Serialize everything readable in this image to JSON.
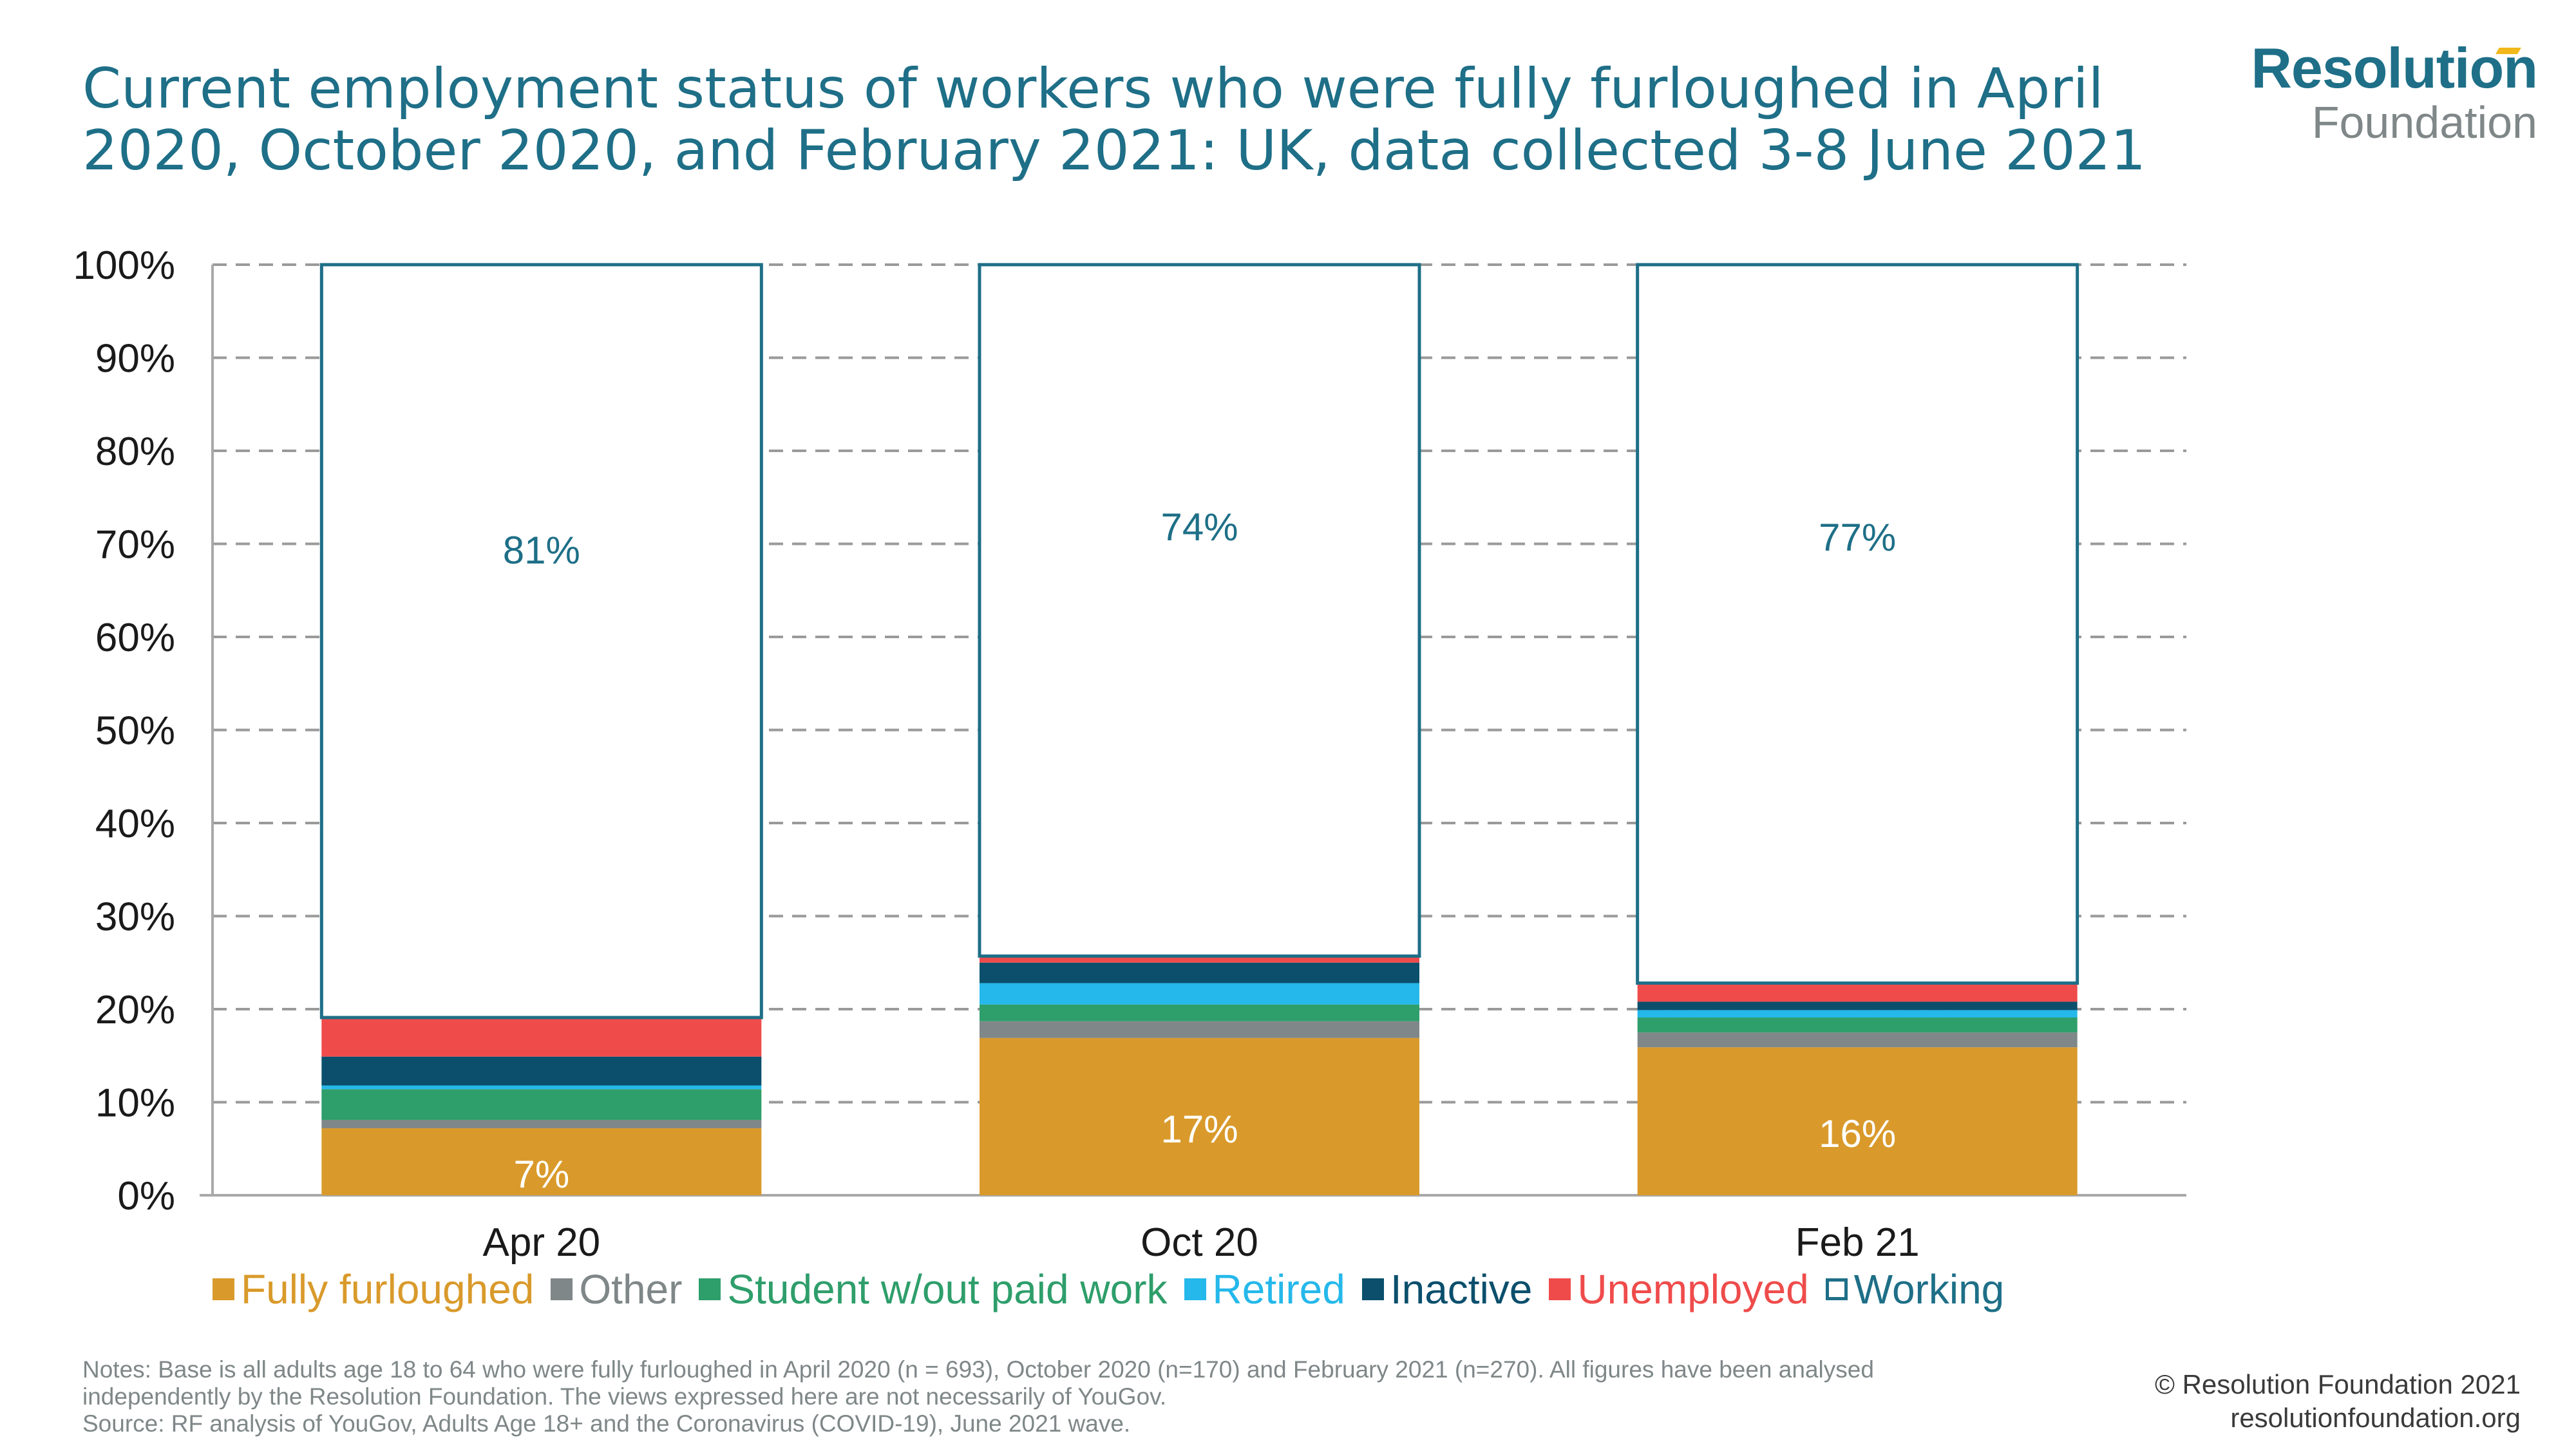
{
  "header": {
    "title": "Current employment status of workers who were fully furloughed in April 2020, October 2020, and February 2021: UK, data collected 3-8 June 2021",
    "logo_top": "Resolution",
    "logo_bottom": "Foundation"
  },
  "chart_data": {
    "type": "bar",
    "stacked": true,
    "title": "Current employment status of workers who were fully furloughed in April 2020, October 2020, and February 2021: UK, data collected 3-8 June 2021",
    "xlabel": "",
    "ylabel": "",
    "ylim": [
      0,
      100
    ],
    "yticks": [
      "0%",
      "10%",
      "20%",
      "30%",
      "40%",
      "50%",
      "60%",
      "70%",
      "80%",
      "90%",
      "100%"
    ],
    "grid": true,
    "legend_position": "bottom",
    "categories": [
      "Apr 20",
      "Oct 20",
      "Feb 21"
    ],
    "series": [
      {
        "name": "Fully furloughed",
        "color": "#d99a2b",
        "values": [
          7.2,
          16.9,
          15.9
        ],
        "labels": [
          "7%",
          "17%",
          "16%"
        ]
      },
      {
        "name": "Other",
        "color": "#7f8788",
        "values": [
          0.9,
          1.8,
          1.6
        ],
        "labels": [
          "",
          "",
          ""
        ]
      },
      {
        "name": "Student w/out paid work",
        "color": "#2e9e6b",
        "values": [
          3.3,
          1.8,
          1.6
        ],
        "labels": [
          "",
          "",
          ""
        ]
      },
      {
        "name": "Retired",
        "color": "#25b8ea",
        "values": [
          0.4,
          2.3,
          0.8
        ],
        "labels": [
          "",
          "",
          ""
        ]
      },
      {
        "name": "Inactive",
        "color": "#0b4f6c",
        "values": [
          3.1,
          2.2,
          0.9
        ],
        "labels": [
          "",
          "",
          ""
        ]
      },
      {
        "name": "Unemployed",
        "color": "#ef4b4b",
        "values": [
          4.2,
          0.7,
          2.0
        ],
        "labels": [
          "",
          "",
          ""
        ]
      },
      {
        "name": "Working",
        "color": "#ffffff",
        "outline": "#1e6f87",
        "values": [
          80.9,
          74.3,
          77.2
        ],
        "labels": [
          "81%",
          "74%",
          "77%"
        ]
      }
    ]
  },
  "notes": {
    "line1": "Notes:  Base is all adults age 18 to 64 who were fully furloughed in April 2020 (n = 693), October 2020 (n=170) and February 2021 (n=270). All figures have been analysed",
    "line2": "independently by the Resolution Foundation. The views expressed here are not necessarily of YouGov.",
    "line3": "Source: RF analysis of YouGov, Adults Age 18+ and the Coronavirus (COVID-19), June 2021 wave."
  },
  "footer": {
    "copyright": "© Resolution Foundation 2021",
    "website": "resolutionfoundation.org"
  }
}
